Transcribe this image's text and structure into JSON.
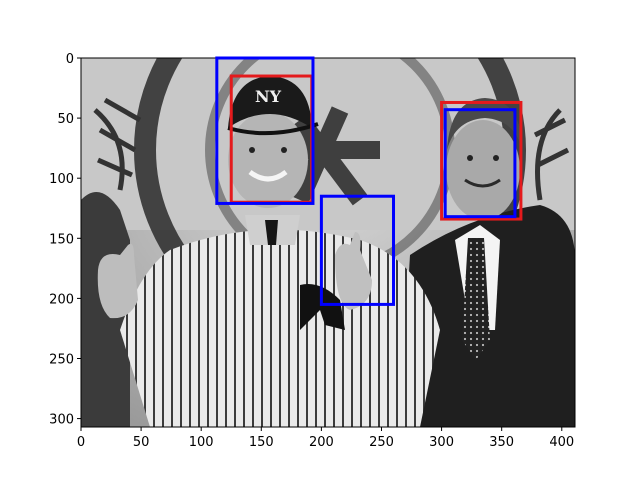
{
  "figure": {
    "background": "#ffffff",
    "image_description_tags": [
      "grayscale-photo",
      "detection-boxes"
    ]
  },
  "chart_data": {
    "type": "scatter",
    "title": "",
    "xlabel": "",
    "ylabel": "",
    "xlim": [
      0,
      411
    ],
    "ylim": [
      307,
      0
    ],
    "x_ticks": [
      0,
      50,
      100,
      150,
      200,
      250,
      300,
      350,
      400
    ],
    "y_ticks": [
      0,
      50,
      100,
      150,
      200,
      250,
      300
    ],
    "grid": false,
    "legend": "none",
    "box_colors": {
      "red": "#e41a1c",
      "blue": "#0000ff"
    },
    "boxes": [
      {
        "color": "red",
        "x0": 125,
        "y0": 15,
        "x1": 192,
        "y1": 120
      },
      {
        "color": "blue",
        "x0": 113,
        "y0": 0,
        "x1": 193,
        "y1": 121
      },
      {
        "color": "red",
        "x0": 300,
        "y0": 37,
        "x1": 366,
        "y1": 134
      },
      {
        "color": "blue",
        "x0": 303,
        "y0": 43,
        "x1": 361,
        "y1": 132
      },
      {
        "color": "blue",
        "x0": 200,
        "y0": 115,
        "x1": 260,
        "y1": 205
      }
    ]
  }
}
